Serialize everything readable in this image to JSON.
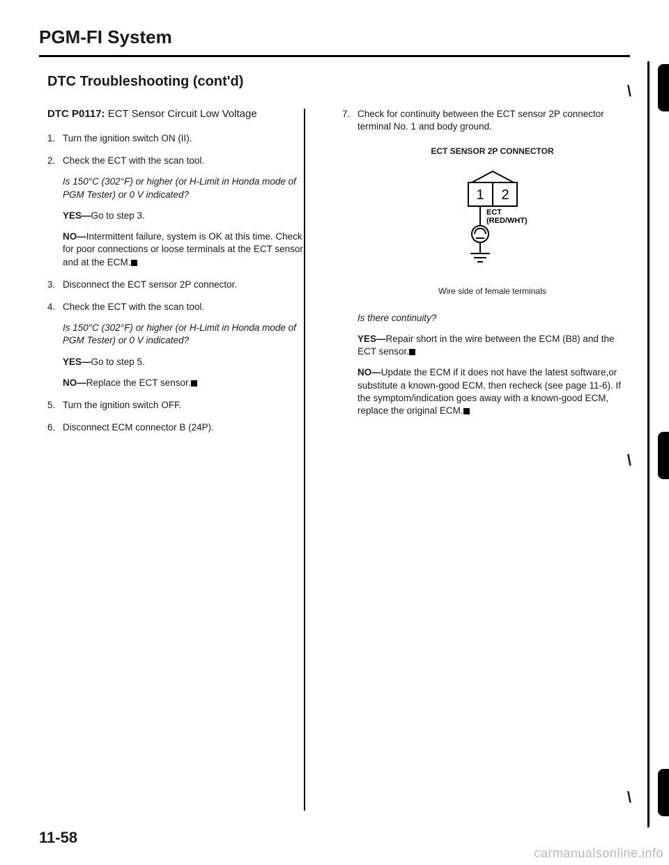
{
  "header": {
    "title": "PGM-FI System",
    "subtitle": "DTC Troubleshooting (cont'd)"
  },
  "left": {
    "dtc_code": "DTC P0117:",
    "dtc_desc": "ECT Sensor Circuit Low Voltage",
    "steps": [
      {
        "n": "1.",
        "body": "Turn the ignition switch ON (II)."
      },
      {
        "n": "2.",
        "body": "Check the ECT with the scan tool.",
        "q": "Is 150°C (302°F) or higher (or H-Limit in Honda mode of PGM Tester) or 0 V indicated?",
        "yes": "Go to step 3.",
        "no": "Intermittent failure, system is OK at this time. Check for poor connections or loose terminals at the ECT sensor and at the ECM.",
        "no_end": true
      },
      {
        "n": "3.",
        "body": "Disconnect the ECT sensor 2P connector."
      },
      {
        "n": "4.",
        "body": "Check the ECT with the scan tool.",
        "q": "Is 150°C (302°F) or higher (or H-Limit in Honda mode of PGM Tester) or 0 V indicated?",
        "yes": "Go to step 5.",
        "no": "Replace the ECT sensor.",
        "no_end": true
      },
      {
        "n": "5.",
        "body": "Turn the ignition switch OFF."
      },
      {
        "n": "6.",
        "body": "Disconnect ECM connector B (24P)."
      }
    ]
  },
  "right": {
    "step": {
      "n": "7.",
      "body": "Check for continuity between the ECT sensor 2P connector terminal No. 1 and body ground."
    },
    "connector_title": "ECT SENSOR 2P CONNECTOR",
    "connector": {
      "pin1": "1",
      "pin2": "2",
      "label1": "ECT",
      "label2": "(RED/WHT)"
    },
    "caption": "Wire side of female terminals",
    "q": "Is there continuity?",
    "yes": "Repair short in the wire between the ECM (B8) and the ECT sensor.",
    "yes_end": true,
    "no": "Update the ECM if it does not have the latest software,or substitute a known-good ECM, then recheck (see page 11-6). If the symptom/indication goes away with a known-good ECM, replace the original ECM.",
    "no_end": true
  },
  "page_num": "11-58",
  "watermark": "carmanualsonline.info",
  "corner_mark": "\\"
}
